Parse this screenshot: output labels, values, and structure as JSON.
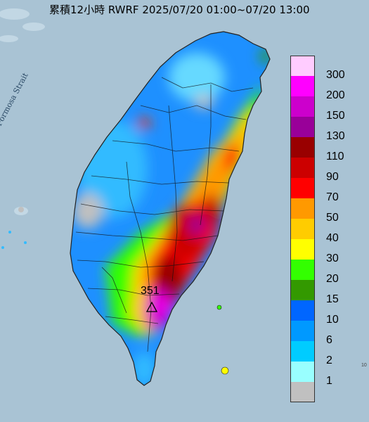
{
  "title": "累積12小時 RWRF 2025/07/20 01:00~07/20 13:00",
  "map": {
    "sea_label": "Formosa Strait",
    "max_value_label": "351",
    "max_marker": "triangle-marker",
    "edge_label": "10"
  },
  "legend": {
    "items": [
      {
        "label": "300",
        "color": "#ffccff"
      },
      {
        "label": "200",
        "color": "#ff00ff"
      },
      {
        "label": "150",
        "color": "#cc00cc"
      },
      {
        "label": "130",
        "color": "#990099"
      },
      {
        "label": "110",
        "color": "#990000"
      },
      {
        "label": "90",
        "color": "#cc0000"
      },
      {
        "label": "70",
        "color": "#ff0000"
      },
      {
        "label": "50",
        "color": "#ff9900"
      },
      {
        "label": "40",
        "color": "#ffcc00"
      },
      {
        "label": "30",
        "color": "#ffff00"
      },
      {
        "label": "20",
        "color": "#33ff00"
      },
      {
        "label": "15",
        "color": "#339900"
      },
      {
        "label": "10",
        "color": "#0066ff"
      },
      {
        "label": "6",
        "color": "#0099ff"
      },
      {
        "label": "2",
        "color": "#00ccff"
      },
      {
        "label": "1",
        "color": "#99ffff"
      },
      {
        "label": "",
        "color": "#c0c0c0"
      }
    ]
  }
}
